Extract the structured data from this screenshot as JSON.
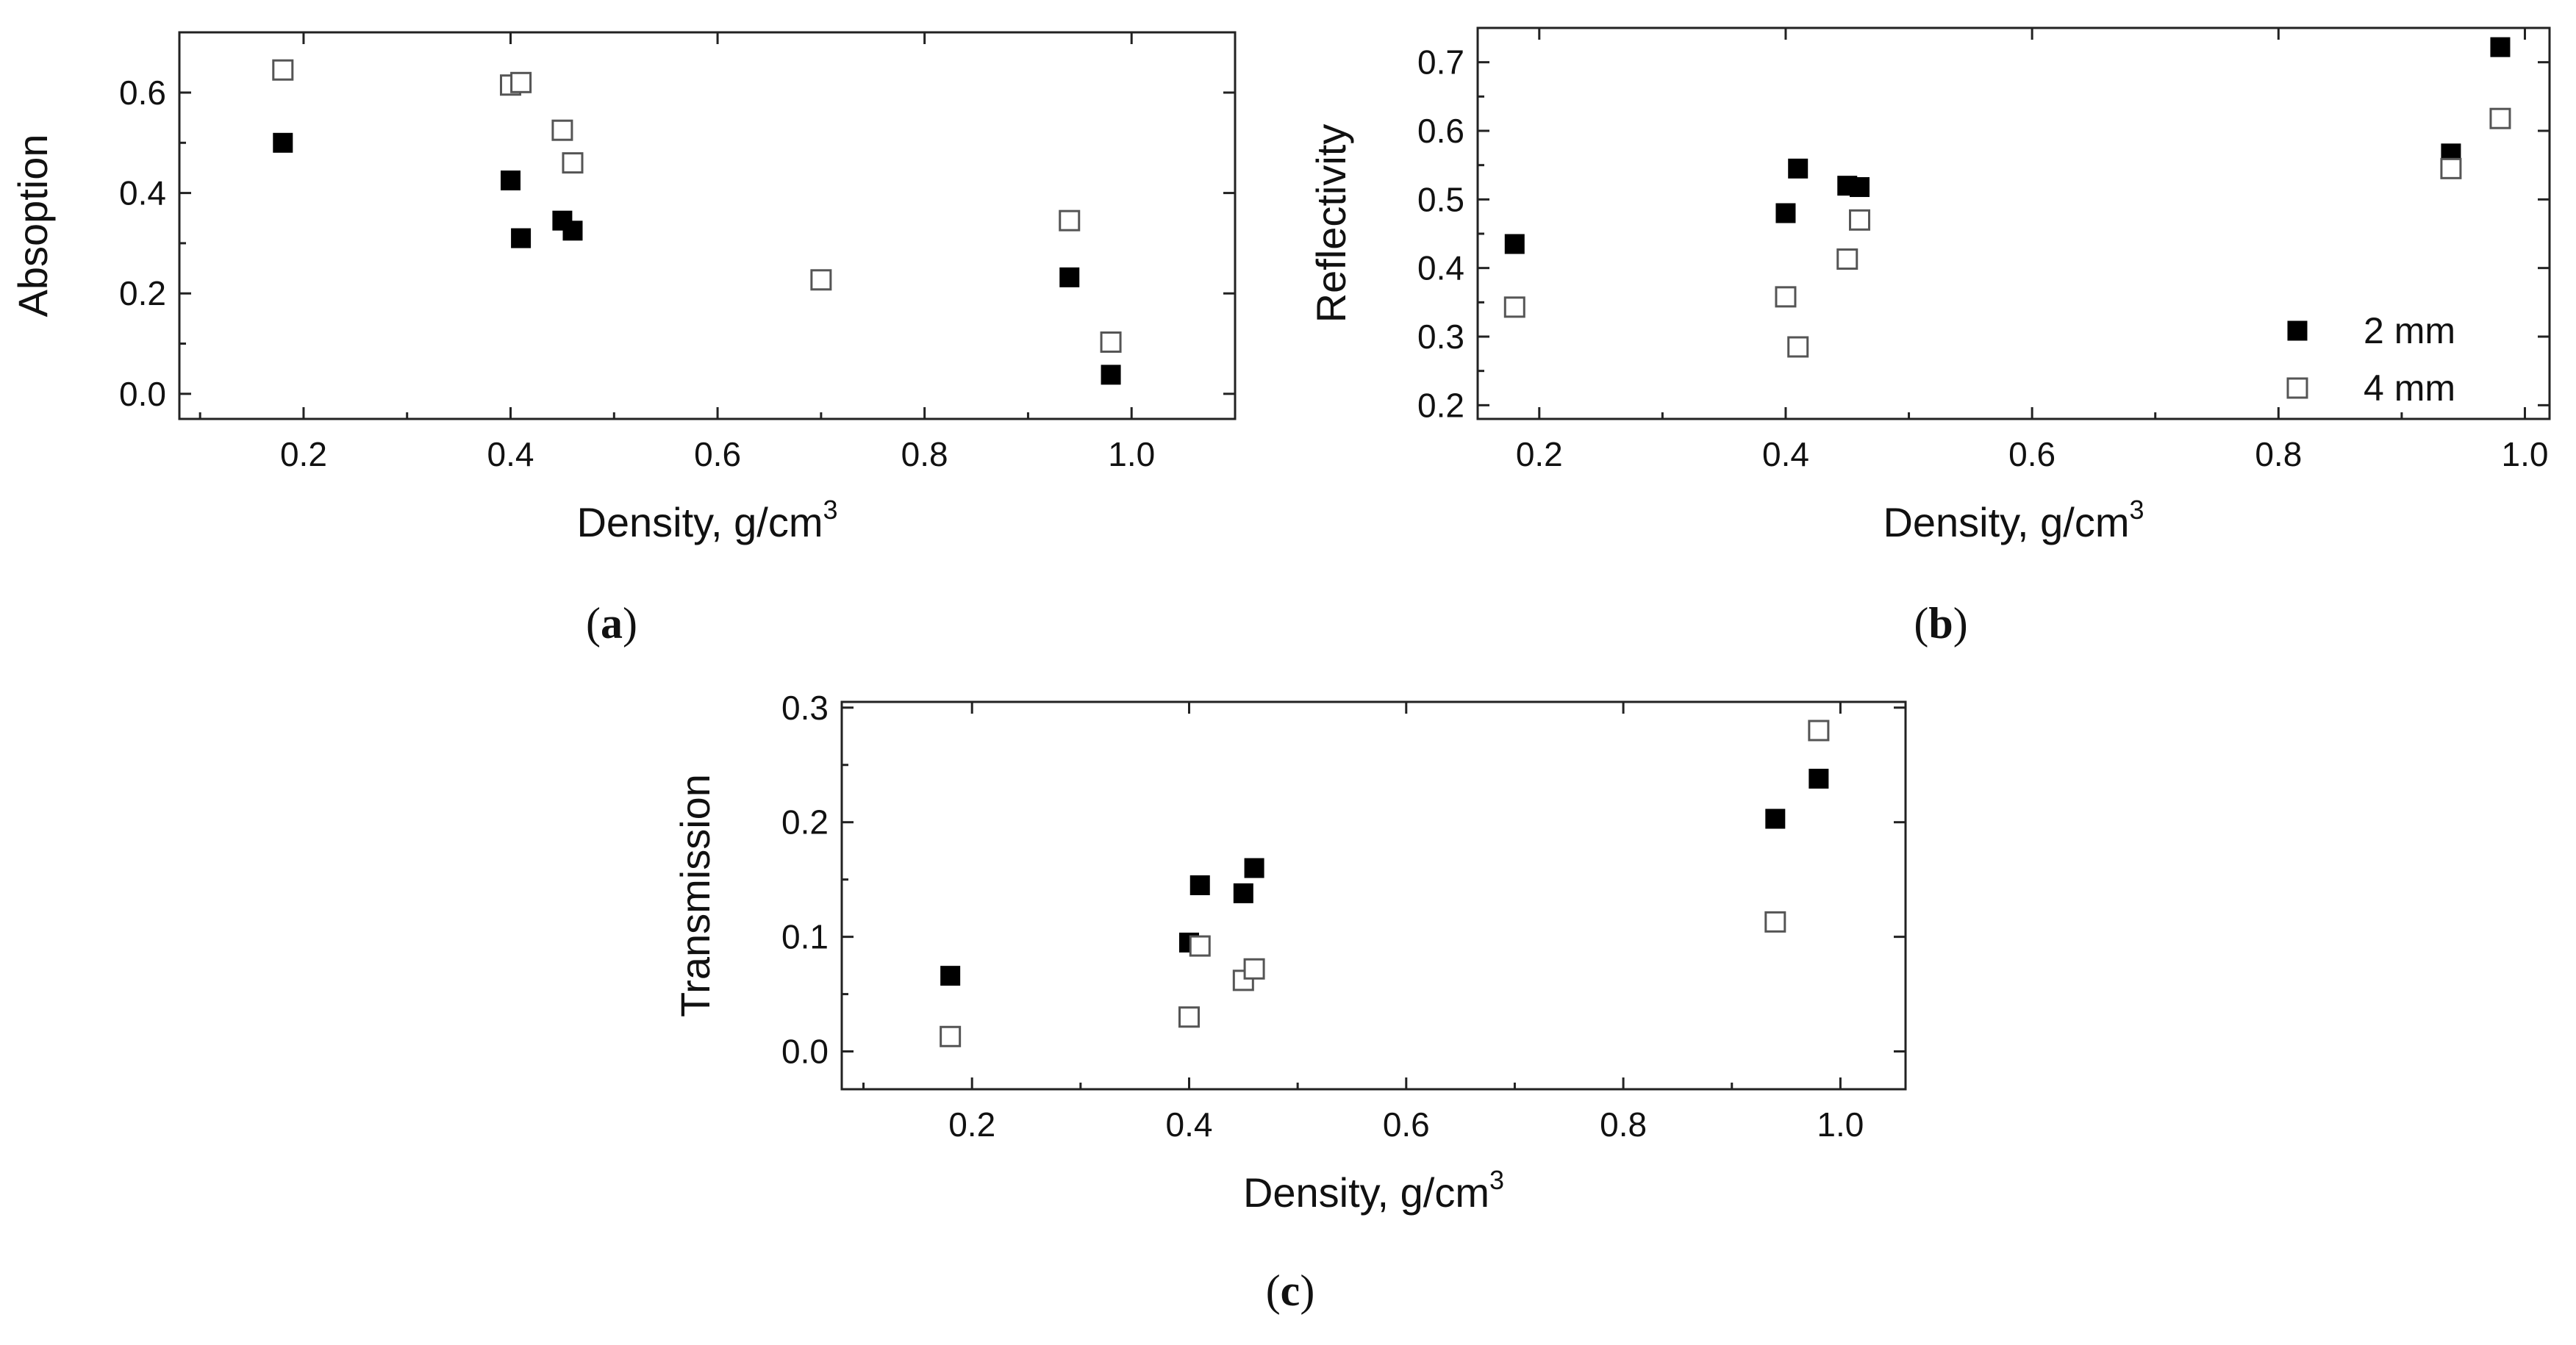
{
  "colors": {
    "axis": "#222222",
    "filled_marker": "#000000",
    "open_marker_fill": "#ffffff",
    "open_marker_stroke": "#555555"
  },
  "chart_data": [
    {
      "id": "a",
      "type": "scatter",
      "panel_label": "a",
      "title": "",
      "xlabel": "Density, g/cm",
      "xlabel_sup": "3",
      "ylabel": "Absoption",
      "xlim": [
        0.08,
        1.1
      ],
      "ylim": [
        -0.05,
        0.72
      ],
      "xticks": [
        "0.2",
        "0.4",
        "0.6",
        "0.8",
        "1.0"
      ],
      "yticks": [
        "0.0",
        "0.2",
        "0.4",
        "0.6"
      ],
      "legend": null,
      "series": [
        {
          "name": "2 mm",
          "marker": "filled-square",
          "x": [
            0.18,
            0.4,
            0.41,
            0.45,
            0.46,
            0.94,
            0.98
          ],
          "y": [
            0.5,
            0.425,
            0.31,
            0.345,
            0.325,
            0.232,
            0.038
          ]
        },
        {
          "name": "4 mm",
          "marker": "open-square",
          "x": [
            0.18,
            0.4,
            0.41,
            0.45,
            0.46,
            0.7,
            0.94,
            0.98
          ],
          "y": [
            0.645,
            0.615,
            0.62,
            0.525,
            0.46,
            0.227,
            0.345,
            0.103
          ]
        }
      ]
    },
    {
      "id": "b",
      "type": "scatter",
      "panel_label": "b",
      "title": "",
      "xlabel": "Density, g/cm",
      "xlabel_sup": "3",
      "ylabel": "Reflectivity",
      "xlim": [
        0.15,
        1.02
      ],
      "ylim": [
        0.18,
        0.75
      ],
      "xticks": [
        "0.2",
        "0.4",
        "0.6",
        "0.8",
        "1.0"
      ],
      "yticks": [
        "0.2",
        "0.3",
        "0.4",
        "0.5",
        "0.6",
        "0.7"
      ],
      "legend": {
        "position": "bottom-right",
        "entries": [
          "2 mm",
          "4 mm"
        ]
      },
      "series": [
        {
          "name": "2 mm",
          "marker": "filled-square",
          "x": [
            0.18,
            0.4,
            0.41,
            0.45,
            0.46,
            0.94,
            0.98
          ],
          "y": [
            0.435,
            0.48,
            0.545,
            0.52,
            0.518,
            0.567,
            0.722
          ]
        },
        {
          "name": "4 mm",
          "marker": "open-square",
          "x": [
            0.18,
            0.4,
            0.41,
            0.45,
            0.46,
            0.94,
            0.98
          ],
          "y": [
            0.343,
            0.358,
            0.285,
            0.413,
            0.47,
            0.545,
            0.618
          ]
        }
      ]
    },
    {
      "id": "c",
      "type": "scatter",
      "panel_label": "c",
      "title": "",
      "xlabel": "Density, g/cm",
      "xlabel_sup": "3",
      "ylabel": "Transmission",
      "xlim": [
        0.08,
        1.06
      ],
      "ylim": [
        -0.033,
        0.305
      ],
      "xticks": [
        "0.2",
        "0.4",
        "0.6",
        "0.8",
        "1.0"
      ],
      "yticks": [
        "0.0",
        "0.1",
        "0.2",
        "0.3"
      ],
      "legend": null,
      "series": [
        {
          "name": "2 mm",
          "marker": "filled-square",
          "x": [
            0.18,
            0.4,
            0.41,
            0.45,
            0.46,
            0.94,
            0.98
          ],
          "y": [
            0.066,
            0.095,
            0.145,
            0.138,
            0.16,
            0.203,
            0.238
          ]
        },
        {
          "name": "4 mm",
          "marker": "open-square",
          "x": [
            0.18,
            0.4,
            0.41,
            0.45,
            0.46,
            0.94,
            0.98
          ],
          "y": [
            0.013,
            0.03,
            0.092,
            0.062,
            0.072,
            0.113,
            0.28
          ]
        }
      ]
    }
  ]
}
